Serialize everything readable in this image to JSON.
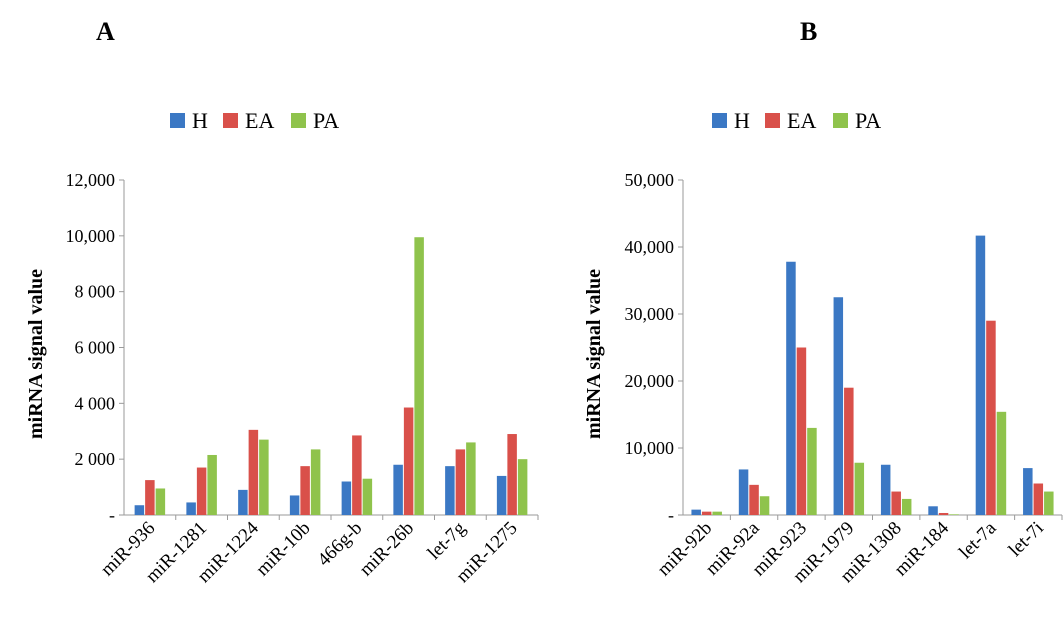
{
  "panels": [
    {
      "label": "A"
    },
    {
      "label": "B"
    }
  ],
  "chart_data": [
    {
      "type": "bar",
      "panel": "A",
      "ylabel": "miRNA signal value",
      "ylim": [
        0,
        12000
      ],
      "yticks": [
        0,
        2000,
        4000,
        6000,
        8000,
        10000,
        12000
      ],
      "ytick_labels": [
        "-",
        "2 000",
        "4 000",
        "6 000",
        "8 000",
        "10,000",
        "12,000"
      ],
      "legend_position": "top",
      "categories": [
        "miR-936",
        "miR-1281",
        "miR-1224",
        "miR-10b",
        "466g-b",
        "miR-26b",
        "let-7g",
        "miR-1275"
      ],
      "series": [
        {
          "name": "H",
          "color": "#3b78c4",
          "values": [
            350,
            450,
            900,
            700,
            1200,
            1800,
            1750,
            1400
          ]
        },
        {
          "name": "EA",
          "color": "#d9504a",
          "values": [
            1250,
            1700,
            3050,
            1750,
            2850,
            3850,
            2350,
            2900
          ]
        },
        {
          "name": "PA",
          "color": "#8fc34c",
          "values": [
            950,
            2150,
            2700,
            2350,
            1300,
            9950,
            2600,
            2000
          ]
        }
      ]
    },
    {
      "type": "bar",
      "panel": "B",
      "ylabel": "miRNA signal value",
      "ylim": [
        0,
        50000
      ],
      "yticks": [
        0,
        10000,
        20000,
        30000,
        40000,
        50000
      ],
      "ytick_labels": [
        "-",
        "10,000",
        "20,000",
        "30,000",
        "40,000",
        "50,000"
      ],
      "legend_position": "top",
      "categories": [
        "miR-92b",
        "miR-92a",
        "miR-923",
        "miR-1979",
        "miR-1308",
        "miR-184",
        "let-7a",
        "let-7i"
      ],
      "series": [
        {
          "name": "H",
          "color": "#3b78c4",
          "values": [
            800,
            6800,
            37800,
            32500,
            7500,
            1300,
            41700,
            7000
          ]
        },
        {
          "name": "EA",
          "color": "#d9504a",
          "values": [
            500,
            4500,
            25000,
            19000,
            3500,
            300,
            29000,
            4700
          ]
        },
        {
          "name": "PA",
          "color": "#8fc34c",
          "values": [
            500,
            2800,
            13000,
            7800,
            2400,
            100,
            15400,
            3500
          ]
        }
      ]
    }
  ]
}
